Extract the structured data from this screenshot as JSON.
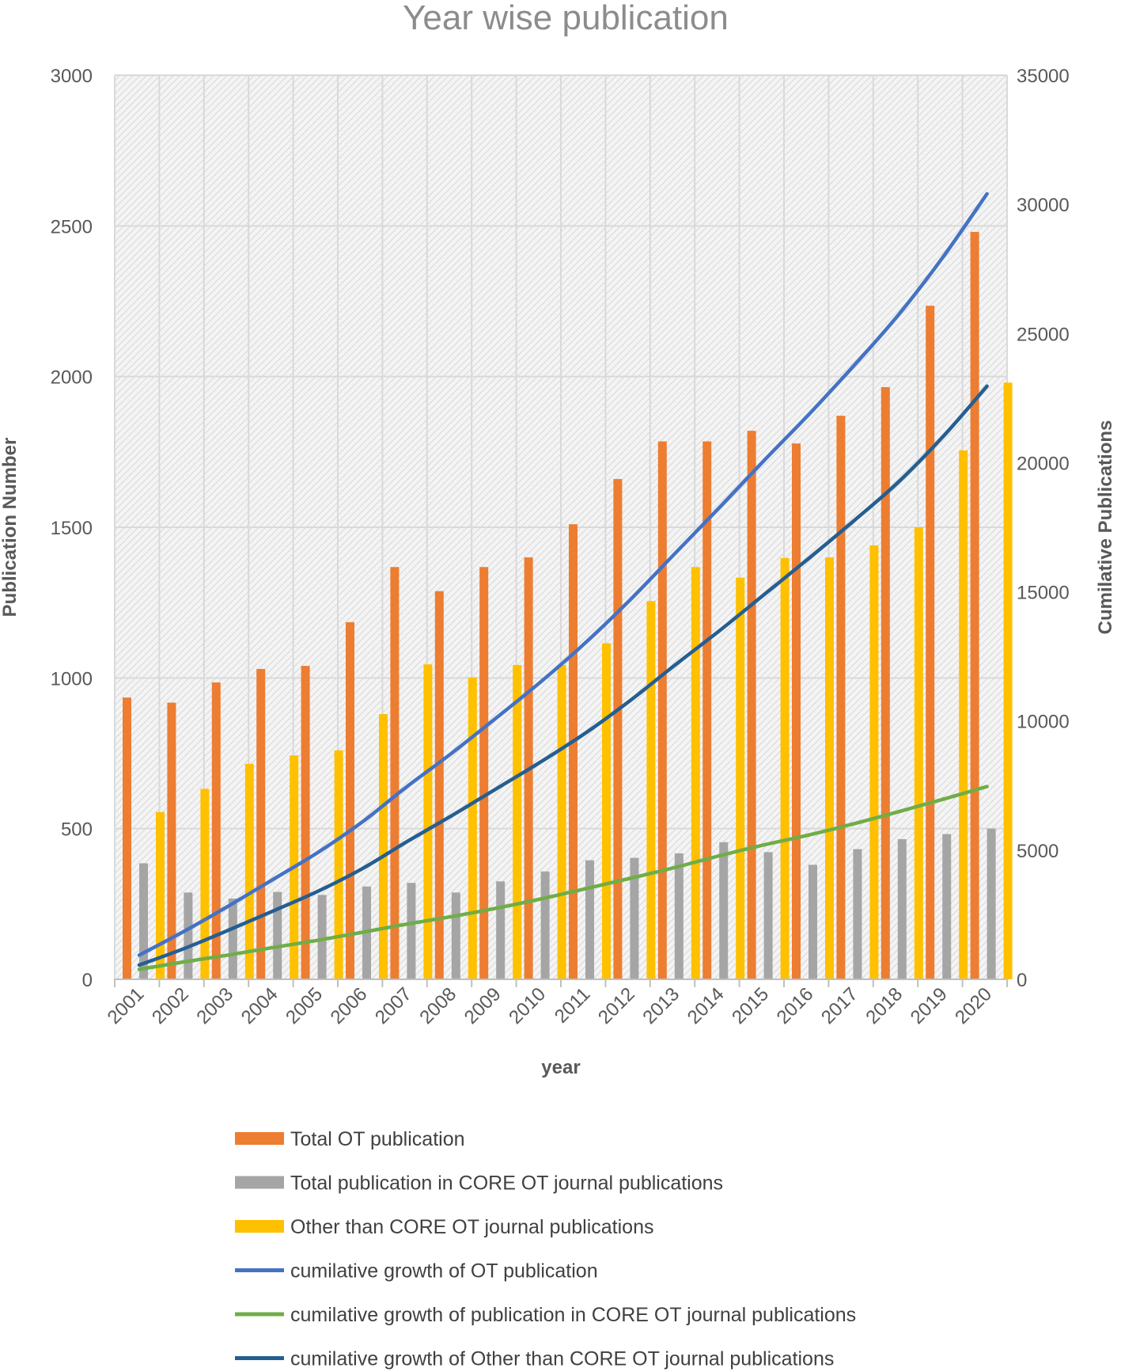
{
  "chart_data": {
    "type": "bar",
    "title": "Year wise publication",
    "xlabel": "year",
    "ylabel": "Publication Number",
    "y2label": "Cumilative Publications",
    "ylim": [
      0,
      3000
    ],
    "y2lim": [
      0,
      35000
    ],
    "yticks": [
      "0",
      "500",
      "1000",
      "1500",
      "2000",
      "2500",
      "3000"
    ],
    "y2ticks": [
      "0",
      "5000",
      "10000",
      "15000",
      "20000",
      "25000",
      "30000",
      "35000"
    ],
    "grid": true,
    "legend_position": "bottom",
    "categories": [
      "2001",
      "2002",
      "2003",
      "2004",
      "2005",
      "2006",
      "2007",
      "2008",
      "2009",
      "2010",
      "2011",
      "2012",
      "2013",
      "2014",
      "2015",
      "2016",
      "2017",
      "2018",
      "2019",
      "2020"
    ],
    "series": [
      {
        "name": "Total OT publication",
        "kind": "bar",
        "axis": "left",
        "color": "#ed7d31",
        "values": [
          935,
          918,
          985,
          1030,
          1040,
          1185,
          1368,
          1288,
          1368,
          1400,
          1510,
          1660,
          1785,
          1785,
          1820,
          1778,
          1870,
          1965,
          2235,
          2480
        ]
      },
      {
        "name": "Total publication in CORE OT journal publications",
        "kind": "bar",
        "axis": "left",
        "color": "#a5a5a5",
        "values": [
          385,
          288,
          268,
          290,
          280,
          308,
          320,
          288,
          325,
          358,
          395,
          403,
          418,
          455,
          422,
          380,
          432,
          465,
          482,
          500
        ]
      },
      {
        "name": "Other than CORE OT journal publications",
        "kind": "bar",
        "axis": "left",
        "color": "#ffc000",
        "values": [
          555,
          632,
          715,
          743,
          760,
          880,
          1045,
          1002,
          1043,
          1043,
          1115,
          1255,
          1368,
          1333,
          1398,
          1400,
          1440,
          1500,
          1755,
          1980
        ]
      },
      {
        "name": "cumilative growth of OT publication",
        "kind": "line",
        "axis": "right",
        "color": "#4472c4",
        "values": [
          935,
          1853,
          2838,
          3868,
          4908,
          6093,
          7461,
          8749,
          10117,
          11517,
          13027,
          14687,
          16472,
          18257,
          20077,
          21855,
          23725,
          25690,
          27925,
          30405
        ]
      },
      {
        "name": "cumilative growth of publication in CORE OT journal publications",
        "kind": "line",
        "axis": "right",
        "color": "#70ad47",
        "values": [
          385,
          673,
          941,
          1231,
          1511,
          1819,
          2139,
          2427,
          2752,
          3110,
          3505,
          3908,
          4326,
          4781,
          5203,
          5583,
          6015,
          6480,
          6962,
          7462
        ]
      },
      {
        "name": "cumilative growth of Other than CORE OT journal publications",
        "kind": "line",
        "axis": "right",
        "color": "#255e91",
        "values": [
          555,
          1187,
          1902,
          2645,
          3405,
          4285,
          5330,
          6332,
          7375,
          8418,
          9533,
          10788,
          12156,
          13489,
          14887,
          16287,
          17727,
          19227,
          20982,
          22962
        ]
      }
    ]
  }
}
